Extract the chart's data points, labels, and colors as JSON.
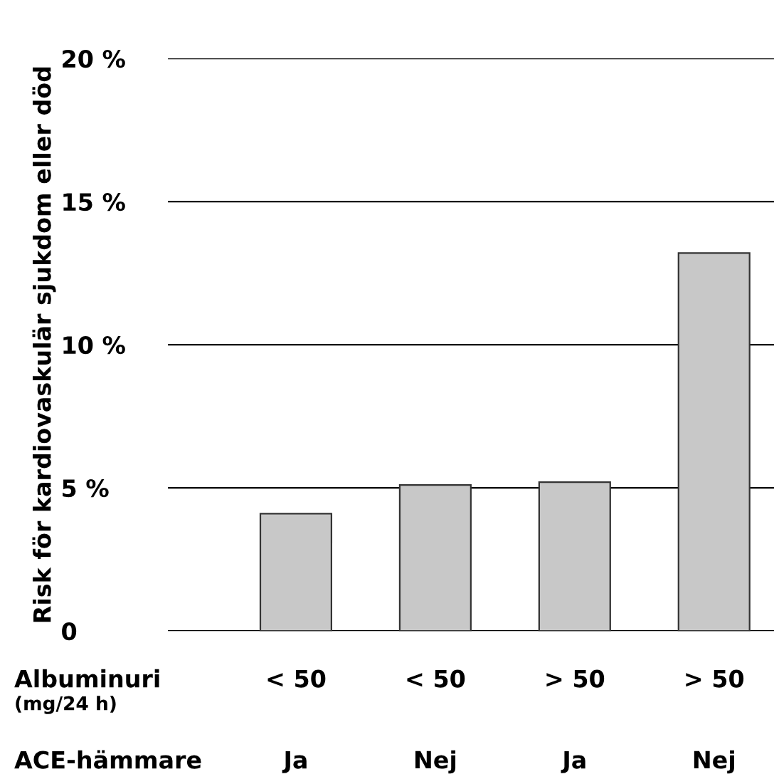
{
  "chart_data": {
    "type": "bar",
    "ylabel": "Risk för kardiovaskulär sjukdom eller död",
    "categories": [
      "< 50\nJa",
      "< 50\nNej",
      "> 50\nJa",
      "> 50\nNej"
    ],
    "values": [
      4.1,
      5.1,
      5.2,
      13.2
    ],
    "color": "#c8c8c8",
    "ylim": [
      0,
      20
    ],
    "yticks": [
      0,
      {
        "value": 5,
        "label": "5 %"
      },
      {
        "value": 10,
        "label": "10 %"
      },
      {
        "value": 15,
        "label": "15 %"
      },
      {
        "value": 20,
        "label": "20 %"
      }
    ],
    "grid": "y",
    "annotations": [
      "Albuminuri\n(mg/24 h)",
      "ACE-hämmare"
    ]
  }
}
